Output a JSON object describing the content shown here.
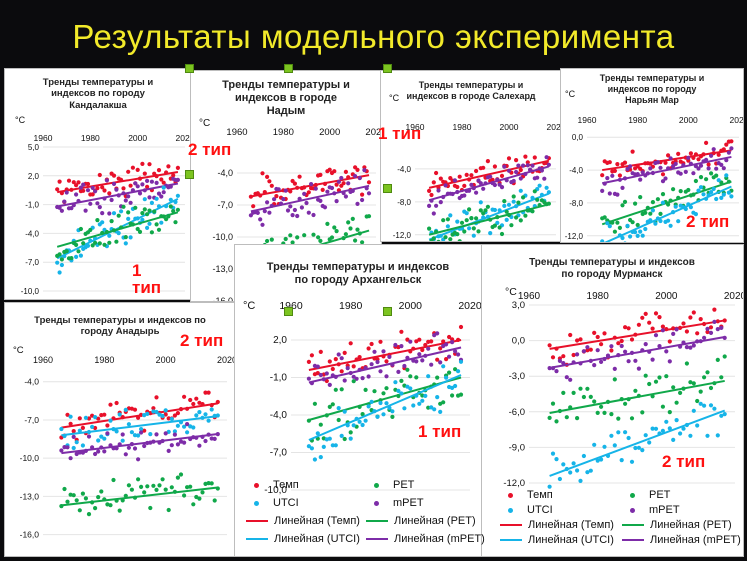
{
  "slide": {
    "title": "Результаты модельного эксперимента"
  },
  "colors": {
    "temp": "#e8102a",
    "pet": "#10a84a",
    "utci": "#16b4e8",
    "mpet": "#7d2ca8",
    "type_label": "#ff1010",
    "title": "#f2ea2a"
  },
  "type_labels": {
    "nadym": "2 тип",
    "salekhard": "1 тип",
    "naryan_mar": "2 тип",
    "kandalaksha_line1": "1",
    "kandalaksha_line2": "тип",
    "anadyr": "2 тип",
    "arkhangelsk": "1 тип",
    "murmansk": "2 тип"
  },
  "legend": {
    "temp": "Темп",
    "pet": "PET",
    "utci": "UTCI",
    "mpet": "mPET",
    "lin_temp": "Линейная (Темп)",
    "lin_pet": "Линейная (PET)",
    "lin_utci": "Линейная (UTCI)",
    "lin_mpet": "Линейная (mPET)"
  },
  "chart_data": [
    {
      "id": "kandalaksha",
      "type": "scatter",
      "title": "Тренды температуры и индексов по городу Кандалакша",
      "title_lines": [
        "Тренды температуры и",
        "индексов по городу",
        "Кандалакша"
      ],
      "ylabel": "°C",
      "xlim": [
        1960,
        2020
      ],
      "ylim": [
        -10,
        5
      ],
      "xticks": [
        "1960",
        "1980",
        "2000",
        "2020"
      ],
      "yticks": [
        5.0,
        2.0,
        -1.0,
        -4.0,
        -7.0,
        -10.0
      ],
      "ytick_labels": [
        "5,0",
        "2,0",
        "-1,0",
        "-4,0",
        "-7,0",
        "-10,0"
      ],
      "series": [
        {
          "key": "temp",
          "name": "Темп",
          "start": [
            1966,
            0.3
          ],
          "end": [
            2017,
            2.4
          ],
          "spread": 1.4
        },
        {
          "key": "mpet",
          "name": "mPET",
          "start": [
            1966,
            -1.2
          ],
          "end": [
            2017,
            1.2
          ],
          "spread": 1.5
        },
        {
          "key": "utci",
          "name": "UTCI",
          "start": [
            1966,
            -6.6
          ],
          "end": [
            2017,
            -0.4
          ],
          "spread": 1.6
        },
        {
          "key": "pet",
          "name": "PET",
          "start": [
            1966,
            -5.4
          ],
          "end": [
            2017,
            -1.8
          ],
          "spread": 1.8
        }
      ]
    },
    {
      "id": "nadym",
      "type": "scatter",
      "title": "Тренды температуры и индексов в городе Надым",
      "title_lines": [
        "Тренды температуры и",
        "индексов в городе",
        "Надым"
      ],
      "ylabel": "°C",
      "xlim": [
        1960,
        2020
      ],
      "ylim": [
        -16,
        -1
      ],
      "xticks": [
        "1960",
        "1980",
        "2000",
        "2020"
      ],
      "yticks": [
        -4.0,
        -7.0,
        -10.0,
        -13.0,
        -16.0
      ],
      "ytick_labels": [
        "-4,0",
        "-7,0",
        "-10,0",
        "-13,0",
        "-16,0"
      ],
      "series": [
        {
          "key": "temp",
          "name": "Темп",
          "start": [
            1966,
            -6.2
          ],
          "end": [
            2017,
            -4.2
          ],
          "spread": 1.5
        },
        {
          "key": "mpet",
          "name": "mPET",
          "start": [
            1966,
            -7.6
          ],
          "end": [
            2017,
            -5.2
          ],
          "spread": 1.4
        },
        {
          "key": "pet",
          "name": "PET",
          "start": [
            1966,
            -12.6
          ],
          "end": [
            2017,
            -9.4
          ],
          "spread": 1.6
        }
      ]
    },
    {
      "id": "salekhard",
      "type": "scatter",
      "title": "Тренды температуры и индексов в городе Салехард",
      "title_lines": [
        "Тренды температуры и",
        "индексов в городе Салехард"
      ],
      "ylabel": "°C",
      "xlim": [
        1960,
        2020
      ],
      "ylim": [
        -13,
        0
      ],
      "xticks": [
        "1960",
        "1980",
        "2000",
        "2020"
      ],
      "yticks": [
        -4.0,
        -8.0,
        -12.0
      ],
      "ytick_labels": [
        "-4,0",
        "-8,0",
        "-12,0"
      ],
      "series": [
        {
          "key": "temp",
          "name": "Темп",
          "start": [
            1966,
            -6.3
          ],
          "end": [
            2017,
            -3.0
          ],
          "spread": 1.5
        },
        {
          "key": "mpet",
          "name": "mPET",
          "start": [
            1966,
            -7.8
          ],
          "end": [
            2017,
            -3.7
          ],
          "spread": 1.4
        },
        {
          "key": "utci",
          "name": "UTCI",
          "start": [
            1966,
            -12.6
          ],
          "end": [
            2017,
            -7.0
          ],
          "spread": 1.8
        },
        {
          "key": "pet",
          "name": "PET",
          "start": [
            1966,
            -12.0
          ],
          "end": [
            2017,
            -8.3
          ],
          "spread": 1.8
        }
      ]
    },
    {
      "id": "naryan_mar",
      "type": "scatter",
      "title": "Тренды температуры и индексов по городу Нарьян Мар",
      "title_lines": [
        "Тренды температуры и",
        "индексов по городу",
        "Нарьян Мар"
      ],
      "ylabel": "°C",
      "xlim": [
        1960,
        2020
      ],
      "ylim": [
        -13,
        1
      ],
      "xticks": [
        "1960",
        "1980",
        "2000",
        "2020"
      ],
      "yticks": [
        0.0,
        -4.0,
        -8.0,
        -12.0
      ],
      "ytick_labels": [
        "0,0",
        "-4,0",
        "-8,0",
        "-12,0"
      ],
      "series": [
        {
          "key": "temp",
          "name": "Темп",
          "start": [
            1966,
            -4.0
          ],
          "end": [
            2017,
            -1.6
          ],
          "spread": 1.3
        },
        {
          "key": "mpet",
          "name": "mPET",
          "start": [
            1966,
            -5.6
          ],
          "end": [
            2017,
            -2.4
          ],
          "spread": 1.3
        },
        {
          "key": "pet",
          "name": "PET",
          "start": [
            1966,
            -10.6
          ],
          "end": [
            2017,
            -5.4
          ],
          "spread": 1.7
        },
        {
          "key": "utci",
          "name": "UTCI",
          "start": [
            1966,
            -13.0
          ],
          "end": [
            2017,
            -6.0
          ],
          "spread": 1.7
        }
      ]
    },
    {
      "id": "anadyr",
      "type": "scatter",
      "title": "Тренды температуры и индексов по городу Анадырь",
      "title_lines": [
        "Тренды температуры и индексов по",
        "городу Анадырь"
      ],
      "ylabel": "°C",
      "xlim": [
        1960,
        2020
      ],
      "ylim": [
        -16.5,
        -3
      ],
      "xticks": [
        "1960",
        "1980",
        "2000",
        "2020"
      ],
      "yticks": [
        -4.0,
        -7.0,
        -10.0,
        -13.0,
        -16.0
      ],
      "ytick_labels": [
        "-4,0",
        "-7,0",
        "-10,0",
        "-13,0",
        "-16,0"
      ],
      "series": [
        {
          "key": "temp",
          "name": "Темп",
          "start": [
            1966,
            -7.6
          ],
          "end": [
            2017,
            -5.7
          ],
          "spread": 1.1
        },
        {
          "key": "utci",
          "name": "UTCI",
          "start": [
            1966,
            -8.2
          ],
          "end": [
            2017,
            -6.7
          ],
          "spread": 1.1
        },
        {
          "key": "mpet",
          "name": "mPET",
          "start": [
            1966,
            -9.6
          ],
          "end": [
            2017,
            -8.1
          ],
          "spread": 1.0
        },
        {
          "key": "pet",
          "name": "PET",
          "start": [
            1966,
            -13.7
          ],
          "end": [
            2017,
            -12.3
          ],
          "spread": 1.3
        }
      ]
    },
    {
      "id": "arkhangelsk",
      "type": "scatter",
      "title": "Тренды температуры и индексов по городу Архангельск",
      "title_lines": [
        "Тренды температуры и индексов",
        "по городу Архангельск"
      ],
      "ylabel": "°C",
      "xlim": [
        1960,
        2020
      ],
      "ylim": [
        -10,
        4
      ],
      "xticks": [
        "1960",
        "1980",
        "2000",
        "2020"
      ],
      "yticks": [
        2.0,
        -1.0,
        -4.0,
        -7.0,
        -10.0
      ],
      "ytick_labels": [
        "2,0",
        "-1,0",
        "-4,0",
        "-7,0",
        "-10,0"
      ],
      "series": [
        {
          "key": "temp",
          "name": "Темп",
          "start": [
            1966,
            -0.4
          ],
          "end": [
            2017,
            2.0
          ],
          "spread": 1.4
        },
        {
          "key": "mpet",
          "name": "mPET",
          "start": [
            1966,
            -1.4
          ],
          "end": [
            2017,
            1.4
          ],
          "spread": 1.4
        },
        {
          "key": "pet",
          "name": "PET",
          "start": [
            1966,
            -4.4
          ],
          "end": [
            2017,
            -1.0
          ],
          "spread": 1.8
        },
        {
          "key": "utci",
          "name": "UTCI",
          "start": [
            1966,
            -6.0
          ],
          "end": [
            2017,
            -0.8
          ],
          "spread": 1.8
        }
      ]
    },
    {
      "id": "murmansk",
      "type": "scatter",
      "title": "Тренды температуры и индексов по городу Мурманск",
      "title_lines": [
        "Тренды температуры и индексов",
        "по городу Мурманск"
      ],
      "ylabel": "°C",
      "xlim": [
        1960,
        2020
      ],
      "ylim": [
        -12,
        3
      ],
      "xticks": [
        "1960",
        "1980",
        "2000",
        "2020"
      ],
      "yticks": [
        3.0,
        0.0,
        -3.0,
        -6.0,
        -9.0,
        -12.0
      ],
      "ytick_labels": [
        "3,0",
        "0,0",
        "-3,0",
        "-6,0",
        "-9,0",
        "-12,0"
      ],
      "series": [
        {
          "key": "temp",
          "name": "Темп",
          "start": [
            1966,
            -0.7
          ],
          "end": [
            2017,
            1.7
          ],
          "spread": 1.3
        },
        {
          "key": "mpet",
          "name": "mPET",
          "start": [
            1966,
            -2.3
          ],
          "end": [
            2017,
            0.3
          ],
          "spread": 1.3
        },
        {
          "key": "pet",
          "name": "PET",
          "start": [
            1966,
            -6.1
          ],
          "end": [
            2017,
            -3.4
          ],
          "spread": 1.6
        },
        {
          "key": "utci",
          "name": "UTCI",
          "start": [
            1966,
            -11.4
          ],
          "end": [
            2017,
            -5.9
          ],
          "spread": 1.8
        }
      ]
    }
  ]
}
